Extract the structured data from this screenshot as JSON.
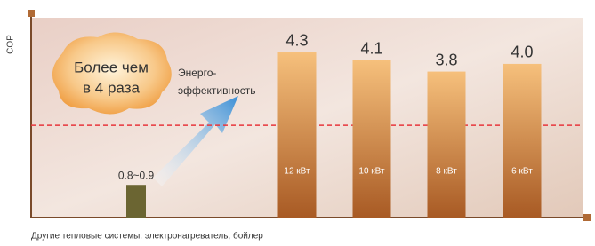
{
  "chart_data": {
    "type": "bar",
    "y_label": "COP",
    "categories": [
      null,
      "12 кВт",
      "10 кВт",
      "8 кВт",
      "6 кВт"
    ],
    "values": [
      0.85,
      4.3,
      4.1,
      3.8,
      4.0
    ],
    "value_labels": [
      "0.8~0.9",
      "4.3",
      "4.1",
      "3.8",
      "4.0"
    ],
    "colors": [
      "#6b6532",
      "#a85a24",
      "#a85a24",
      "#a85a24",
      "#a85a24"
    ],
    "ylim": [
      0,
      5.2
    ],
    "reference_line": 2.4,
    "reference_color": "#e8363c",
    "annotations": {
      "badge": [
        "Более чем",
        "в 4 раза"
      ],
      "label": [
        "Энерго-",
        "эффективность"
      ]
    },
    "footnote": "Другие тепловые системы: электронагреватель, бойлер"
  }
}
